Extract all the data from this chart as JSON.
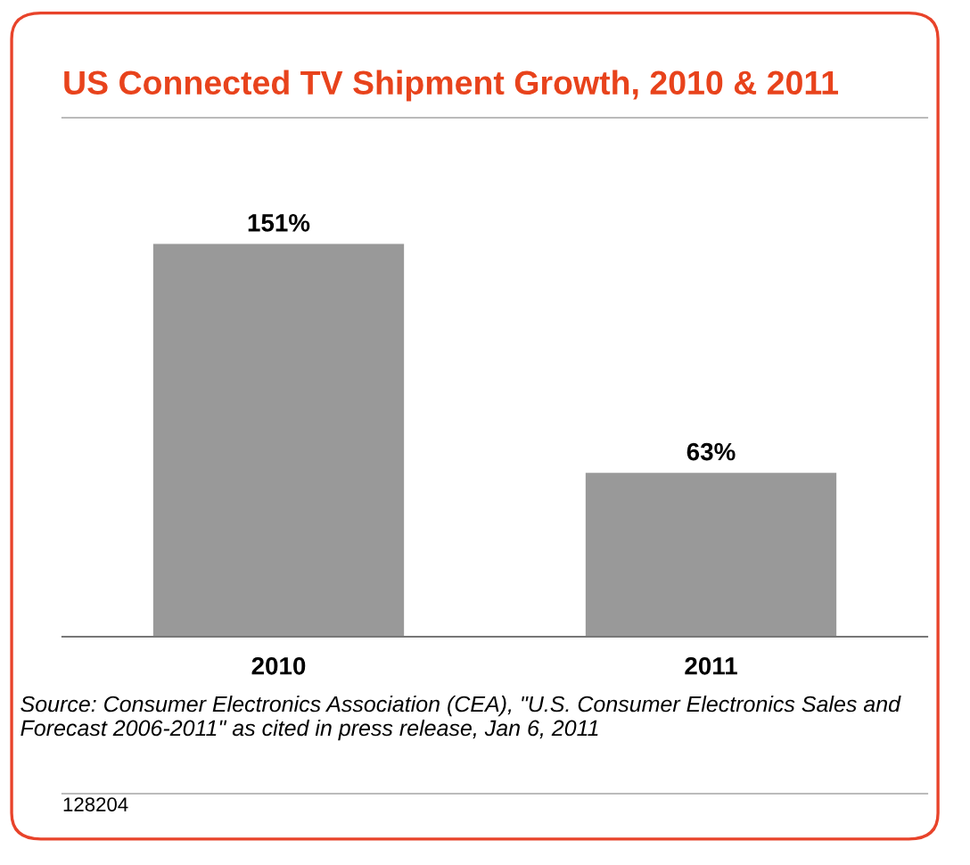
{
  "chart_data": {
    "type": "bar",
    "title": "US Connected TV Shipment Growth, 2010 & 2011",
    "categories": [
      "2010",
      "2011"
    ],
    "values": [
      151,
      63
    ],
    "color": "#999999",
    "data_labels": true,
    "value_labels": [
      "151%",
      "63%"
    ],
    "grid": false,
    "legend": false,
    "annotations": [
      "Source: Consumer Electronics Association (CEA), \"U.S. Consumer Electronics Sales and Forecast 2006-2011\" as cited in press release, Jan 6, 2011",
      "128204"
    ]
  }
}
